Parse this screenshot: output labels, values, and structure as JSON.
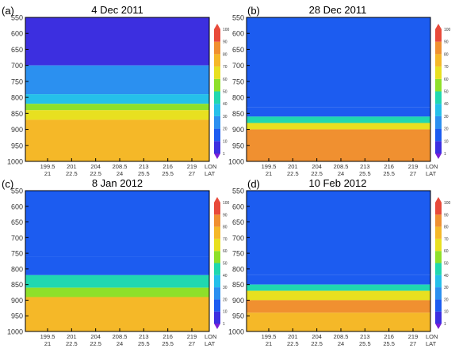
{
  "chart_data": [
    {
      "type": "heatmap",
      "panel_label": "(a)",
      "title": "4 Dec 2011",
      "y_ticks": [
        "550",
        "600",
        "650",
        "700",
        "750",
        "800",
        "850",
        "900",
        "950",
        "1000"
      ],
      "lon_ticks": [
        "199.5",
        "201",
        "204",
        "208.5",
        "213",
        "216",
        "219"
      ],
      "lat_ticks": [
        "21",
        "22.5",
        "22.5",
        "24",
        "25.5",
        "25.5",
        "27"
      ],
      "x_axis_labels": [
        "LON",
        "LAT"
      ],
      "colorbar_ticks": [
        "1",
        "10",
        "20",
        "30",
        "40",
        "50",
        "60",
        "70",
        "80",
        "90",
        "100"
      ],
      "levels": [
        {
          "y": 550,
          "v": 10
        },
        {
          "y": 700,
          "v": 25
        },
        {
          "y": 790,
          "v": 40
        },
        {
          "y": 820,
          "v": 55
        },
        {
          "y": 840,
          "v": 70
        },
        {
          "y": 870,
          "v": 80
        },
        {
          "y": 1000,
          "v": 85
        }
      ]
    },
    {
      "type": "heatmap",
      "panel_label": "(b)",
      "title": "28 Dec 2011",
      "y_ticks": [
        "550",
        "600",
        "650",
        "700",
        "750",
        "800",
        "850",
        "900",
        "950",
        "1000"
      ],
      "lon_ticks": [
        "199.5",
        "201",
        "204",
        "208.5",
        "213",
        "216",
        "219"
      ],
      "lat_ticks": [
        "21",
        "22.5",
        "22.5",
        "24",
        "25.5",
        "25.5",
        "27"
      ],
      "x_axis_labels": [
        "LON",
        "LAT"
      ],
      "colorbar_ticks": [
        "1",
        "10",
        "20",
        "30",
        "40",
        "50",
        "60",
        "70",
        "80",
        "90",
        "100"
      ],
      "levels": [
        {
          "y": 550,
          "v": 15
        },
        {
          "y": 830,
          "v": 15
        },
        {
          "y": 860,
          "v": 45
        },
        {
          "y": 880,
          "v": 70
        },
        {
          "y": 900,
          "v": 85
        },
        {
          "y": 1000,
          "v": 85
        }
      ]
    },
    {
      "type": "heatmap",
      "panel_label": "(c)",
      "title": "8 Jan 2012",
      "y_ticks": [
        "550",
        "600",
        "650",
        "700",
        "750",
        "800",
        "850",
        "900",
        "950",
        "1000"
      ],
      "lon_ticks": [
        "199.5",
        "201",
        "204",
        "208.5",
        "213",
        "216",
        "219"
      ],
      "lat_ticks": [
        "21",
        "22.5",
        "22.5",
        "24",
        "25.5",
        "25.5",
        "27"
      ],
      "x_axis_labels": [
        "LON",
        "LAT"
      ],
      "colorbar_ticks": [
        "1",
        "10",
        "20",
        "30",
        "40",
        "50",
        "60",
        "70",
        "80",
        "90",
        "100"
      ],
      "levels": [
        {
          "y": 550,
          "v": 15
        },
        {
          "y": 760,
          "v": 20
        },
        {
          "y": 820,
          "v": 45
        },
        {
          "y": 860,
          "v": 60
        },
        {
          "y": 890,
          "v": 75
        },
        {
          "y": 1000,
          "v": 85
        }
      ]
    },
    {
      "type": "heatmap",
      "panel_label": "(d)",
      "title": "10 Feb 2012",
      "y_ticks": [
        "550",
        "600",
        "650",
        "700",
        "750",
        "800",
        "850",
        "900",
        "950",
        "1000"
      ],
      "lon_ticks": [
        "199.5",
        "201",
        "204",
        "208.5",
        "213",
        "216",
        "219"
      ],
      "lat_ticks": [
        "21",
        "22.5",
        "22.5",
        "24",
        "25.5",
        "25.5",
        "27"
      ],
      "x_axis_labels": [
        "LON",
        "LAT"
      ],
      "colorbar_ticks": [
        "1",
        "10",
        "20",
        "30",
        "40",
        "50",
        "60",
        "70",
        "80",
        "90",
        "100"
      ],
      "levels": [
        {
          "y": 550,
          "v": 15
        },
        {
          "y": 820,
          "v": 15
        },
        {
          "y": 850,
          "v": 45
        },
        {
          "y": 870,
          "v": 70
        },
        {
          "y": 900,
          "v": 85
        },
        {
          "y": 940,
          "v": 80
        },
        {
          "y": 1000,
          "v": 70
        }
      ]
    }
  ],
  "colors": {
    "scale": [
      "#7a1fd6",
      "#3c2fe0",
      "#1c5cf0",
      "#2b90f0",
      "#25c0ea",
      "#20d8b0",
      "#8ee02a",
      "#e8e020",
      "#f5b828",
      "#f09030",
      "#e84a3a"
    ]
  }
}
